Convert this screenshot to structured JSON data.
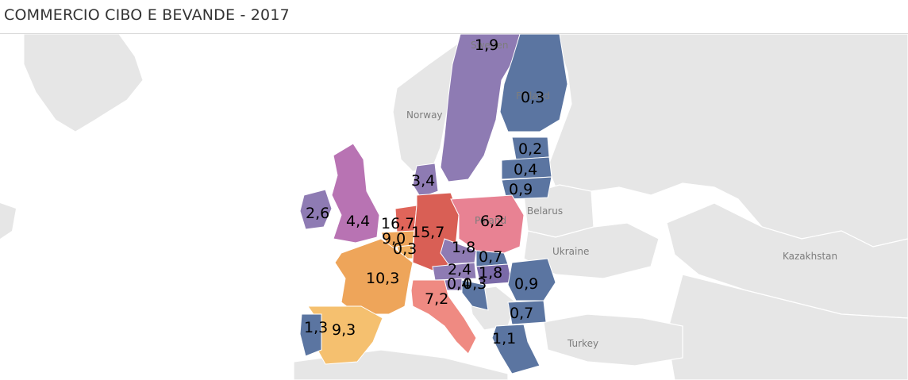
{
  "title": "COMMERCIO CIBO E BEVANDE - 2017",
  "colors": {
    "sea": "#ffffff",
    "land": "#e6e6e6",
    "border": "#ffffff",
    "purple": "#8e7bb3",
    "blue": "#5b75a1",
    "magenta": "#b873b3",
    "red": "#d95f55",
    "pink": "#e88293",
    "orange": "#eea55a",
    "light_orange": "#f5c06f",
    "salmon": "#ef8a82"
  },
  "basemap_labels": {
    "norway": "Norway",
    "belarus": "Belarus",
    "ukraine": "Ukraine",
    "kazakhstan": "Kazakhstan",
    "turkey": "Turkey",
    "sweden": "Sweden",
    "finland": "Finland",
    "poland": "Poland"
  },
  "values": {
    "sweden": "1,9",
    "finland": "0,3",
    "estonia": "0,2",
    "latvia": "0,4",
    "lithuania": "0,9",
    "denmark": "3,4",
    "ireland": "2,6",
    "uk": "4,4",
    "netherlands": "16,7",
    "germany": "15,7",
    "poland": "6,2",
    "belgium": "9,0",
    "luxembourg": "0,3",
    "czechia": "1,8",
    "slovakia": "0,7",
    "austria": "2,4",
    "hungary": "1,8",
    "slovenia": "0,4",
    "croatia": "0,3",
    "romania": "0,9",
    "bulgaria": "0,7",
    "greece": "1,1",
    "france": "10,3",
    "italy": "7,2",
    "spain": "9,3",
    "portugal": "1,3"
  }
}
